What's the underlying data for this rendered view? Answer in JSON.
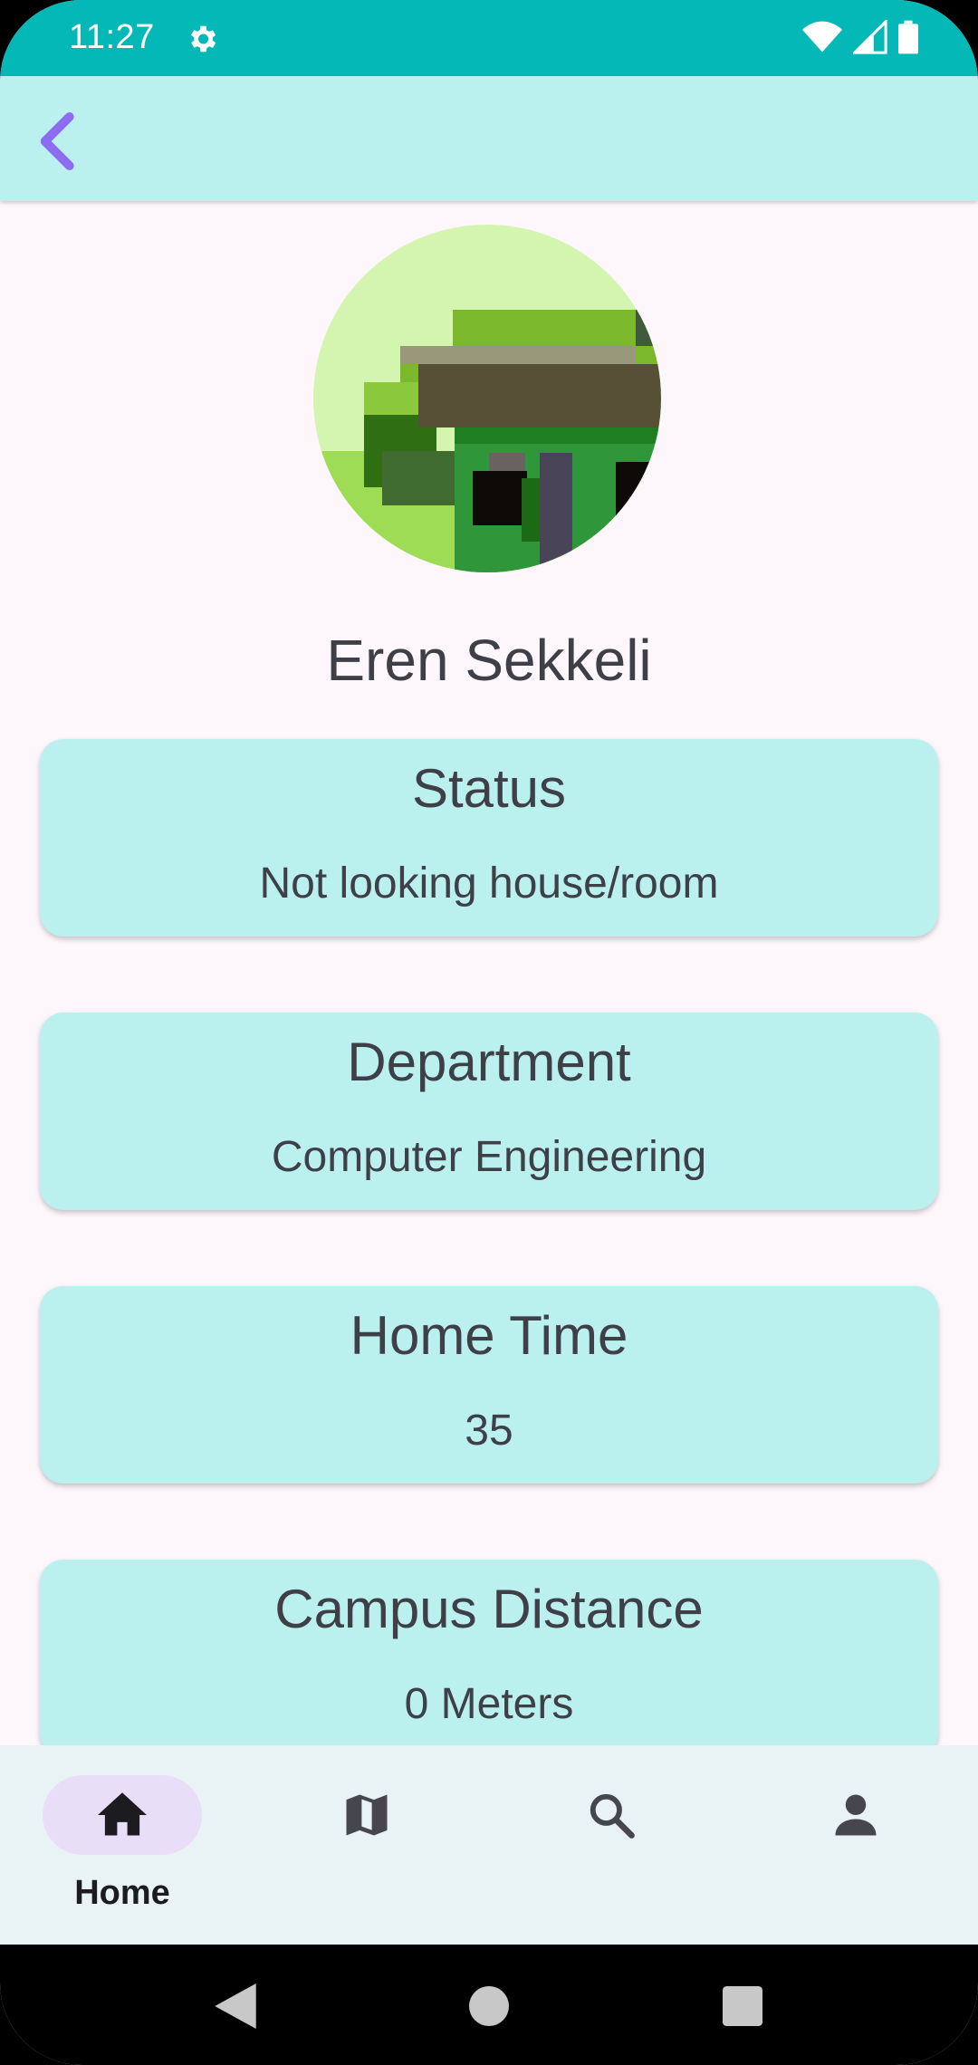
{
  "status_bar": {
    "time": "11:27",
    "icons": [
      "settings-icon",
      "wifi-icon",
      "signal-icon",
      "battery-icon"
    ]
  },
  "app_bar": {
    "back_icon": "chevron-left-icon"
  },
  "profile": {
    "name": "Eren Sekkeli"
  },
  "cards": [
    {
      "title": "Status",
      "value": "Not looking house/room"
    },
    {
      "title": "Department",
      "value": "Computer Engineering"
    },
    {
      "title": "Home Time",
      "value": "35"
    },
    {
      "title": "Campus Distance",
      "value": "0 Meters"
    }
  ],
  "bottom_nav": {
    "items": [
      {
        "icon": "home-icon",
        "label": "Home",
        "selected": true
      },
      {
        "icon": "map-icon",
        "label": "",
        "selected": false
      },
      {
        "icon": "search-icon",
        "label": "",
        "selected": false
      },
      {
        "icon": "person-icon",
        "label": "",
        "selected": false
      }
    ]
  },
  "colors": {
    "status_bar": "#05b8b8",
    "app_bar": "#baf1ef",
    "card": "#baf1ef",
    "background": "#fdf7fb",
    "accent": "#8c6cf0",
    "nav_pill": "#e9def7"
  }
}
